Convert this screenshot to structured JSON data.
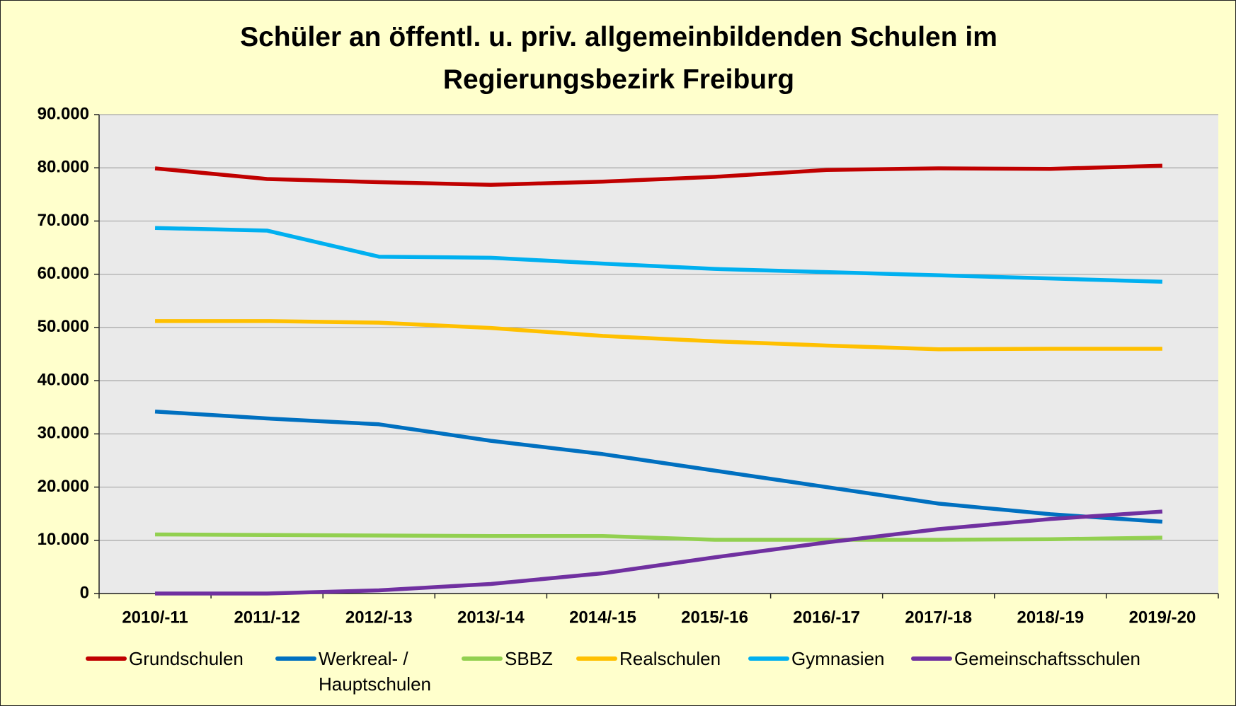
{
  "chart_data": {
    "type": "line",
    "title": "Schüler an öffentl. u. priv. allgemeinbildenden Schulen im Regierungsbezirk Freiburg",
    "categories": [
      "2010/-11",
      "2011/-12",
      "2012/-13",
      "2013/-14",
      "2014/-15",
      "2015/-16",
      "2016/-17",
      "2017/-18",
      "2018/-19",
      "2019/-20"
    ],
    "series": [
      {
        "name": "Grundschulen",
        "color": "#c00000",
        "values": [
          79900,
          77900,
          77300,
          76800,
          77400,
          78300,
          79600,
          79900,
          79800,
          80400
        ]
      },
      {
        "name": "Werkreal- / Hauptschulen",
        "color": "#0070c0",
        "values": [
          34200,
          32900,
          31800,
          28700,
          26200,
          23100,
          20000,
          16900,
          14900,
          13500
        ]
      },
      {
        "name": "SBBZ",
        "color": "#92d050",
        "values": [
          11100,
          11000,
          10900,
          10800,
          10800,
          10100,
          10100,
          10100,
          10200,
          10500
        ]
      },
      {
        "name": "Realschulen",
        "color": "#ffc000",
        "values": [
          51200,
          51200,
          50900,
          49900,
          48400,
          47400,
          46600,
          45900,
          46000,
          46000
        ]
      },
      {
        "name": "Gymnasien",
        "color": "#00b0f0",
        "values": [
          68700,
          68200,
          63300,
          63100,
          62000,
          61000,
          60400,
          59800,
          59200,
          58600
        ]
      },
      {
        "name": "Gemeinschaftsschulen",
        "color": "#7030a0",
        "values": [
          0,
          0,
          600,
          1800,
          3800,
          6800,
          9600,
          12100,
          14000,
          15400
        ]
      }
    ],
    "ylim": [
      0,
      90000
    ],
    "yticks": [
      0,
      {
        "value": 10000,
        "label": "10.000"
      },
      {
        "value": 20000,
        "label": "20.000"
      },
      {
        "value": 30000,
        "label": "30.000"
      },
      {
        "value": 40000,
        "label": "40.000"
      },
      {
        "value": 50000,
        "label": "50.000"
      },
      {
        "value": 60000,
        "label": "60.000"
      },
      {
        "value": 70000,
        "label": "70.000"
      },
      {
        "value": 80000,
        "label": "80.000"
      },
      {
        "value": 90000,
        "label": "90.000"
      }
    ],
    "grid": true,
    "legend": "bottom"
  }
}
